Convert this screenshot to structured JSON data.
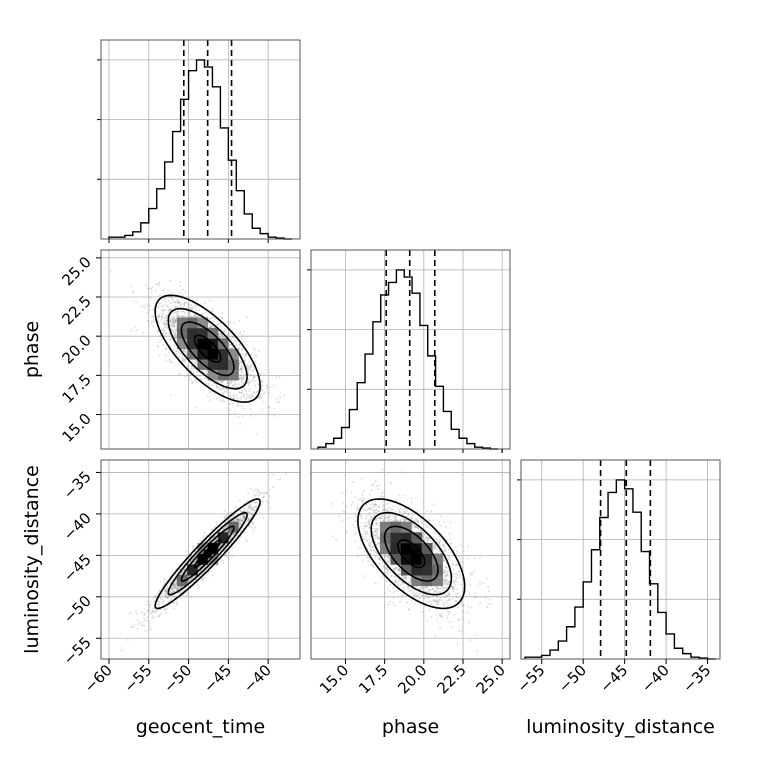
{
  "chart_data": {
    "type": "corner",
    "parameters": [
      "geocent_time",
      "phase",
      "luminosity_distance"
    ],
    "axes": {
      "geocent_time": {
        "range": [
          -61,
          -36
        ],
        "ticks": [
          -60,
          -55,
          -50,
          -45,
          -40
        ],
        "tick_labels": [
          "−60",
          "−55",
          "−50",
          "−45",
          "−40"
        ]
      },
      "phase": {
        "range": [
          12.8,
          25.5
        ],
        "ticks": [
          15.0,
          17.5,
          20.0,
          22.5,
          25.0
        ],
        "tick_labels": [
          "15.0",
          "17.5",
          "20.0",
          "22.5",
          "25.0"
        ]
      },
      "luminosity_distance": {
        "range": [
          -57.5,
          -33.5
        ],
        "ticks": [
          -55,
          -50,
          -45,
          -40,
          -35
        ],
        "tick_labels": [
          "−55",
          "−50",
          "−45",
          "−40",
          "−35"
        ]
      }
    },
    "histograms": [
      {
        "parameter": "geocent_time",
        "bins": [
          -59.5,
          -58.5,
          -57.5,
          -56.5,
          -55.5,
          -54.5,
          -53.5,
          -52.5,
          -51.5,
          -50.5,
          -49.5,
          -48.5,
          -47.5,
          -46.5,
          -45.5,
          -44.5,
          -43.5,
          -42.5,
          -41.5,
          -40.5,
          -39.5,
          -38.5,
          -37.5
        ],
        "counts": [
          0.01,
          0.01,
          0.02,
          0.04,
          0.09,
          0.17,
          0.28,
          0.43,
          0.6,
          0.78,
          0.94,
          1.0,
          0.96,
          0.85,
          0.62,
          0.44,
          0.27,
          0.14,
          0.06,
          0.03,
          0.01,
          0.005,
          0.0
        ],
        "quantiles": [
          -50.6,
          -47.6,
          -44.6
        ]
      },
      {
        "parameter": "phase",
        "bins": [
          13.5,
          14.0,
          14.5,
          15.0,
          15.5,
          16.0,
          16.5,
          17.0,
          17.5,
          18.0,
          18.5,
          19.0,
          19.5,
          20.0,
          20.5,
          21.0,
          21.5,
          22.0,
          22.5,
          23.0,
          23.5,
          24.0,
          24.5
        ],
        "counts": [
          0.01,
          0.03,
          0.06,
          0.12,
          0.22,
          0.37,
          0.53,
          0.71,
          0.86,
          0.93,
          1.0,
          0.96,
          0.87,
          0.69,
          0.52,
          0.35,
          0.21,
          0.11,
          0.06,
          0.03,
          0.01,
          0.005,
          0.0
        ],
        "quantiles": [
          17.6,
          19.1,
          20.7
        ]
      },
      {
        "parameter": "luminosity_distance",
        "bins": [
          -56.5,
          -55.5,
          -54.5,
          -53.5,
          -52.5,
          -51.5,
          -50.5,
          -49.5,
          -48.5,
          -47.5,
          -46.5,
          -45.5,
          -44.5,
          -43.5,
          -42.5,
          -41.5,
          -40.5,
          -39.5,
          -38.5,
          -37.5,
          -36.5,
          -35.5,
          -34.5
        ],
        "counts": [
          0.01,
          0.01,
          0.02,
          0.05,
          0.1,
          0.18,
          0.29,
          0.43,
          0.61,
          0.79,
          0.93,
          1.0,
          0.95,
          0.82,
          0.6,
          0.42,
          0.26,
          0.14,
          0.06,
          0.03,
          0.01,
          0.005,
          0.0
        ],
        "quantiles": [
          -47.9,
          -44.8,
          -41.9
        ]
      }
    ],
    "pairs": [
      {
        "x": "geocent_time",
        "y": "phase",
        "mean": [
          -47.6,
          19.2
        ],
        "sigma": [
          3.0,
          1.55
        ],
        "correlation": -0.7,
        "peak": [
          -47.6,
          19.4
        ]
      },
      {
        "x": "geocent_time",
        "y": "luminosity_distance",
        "mean": [
          -47.6,
          -44.8
        ],
        "sigma": [
          3.0,
          3.0
        ],
        "correlation": 0.95,
        "peak": [
          -47.6,
          -44.8
        ]
      },
      {
        "x": "phase",
        "y": "luminosity_distance",
        "mean": [
          19.2,
          -44.8
        ],
        "sigma": [
          1.55,
          3.0
        ],
        "correlation": -0.6,
        "peak": [
          19.4,
          -44.8
        ]
      }
    ],
    "contour_levels_sigma": [
      0.5,
      1.0,
      1.5,
      2.0
    ],
    "grid": true,
    "colors": {
      "scatter": "#999999",
      "density_dark": "#000000",
      "line": "#000000",
      "grid": "#b0b0b0"
    }
  }
}
